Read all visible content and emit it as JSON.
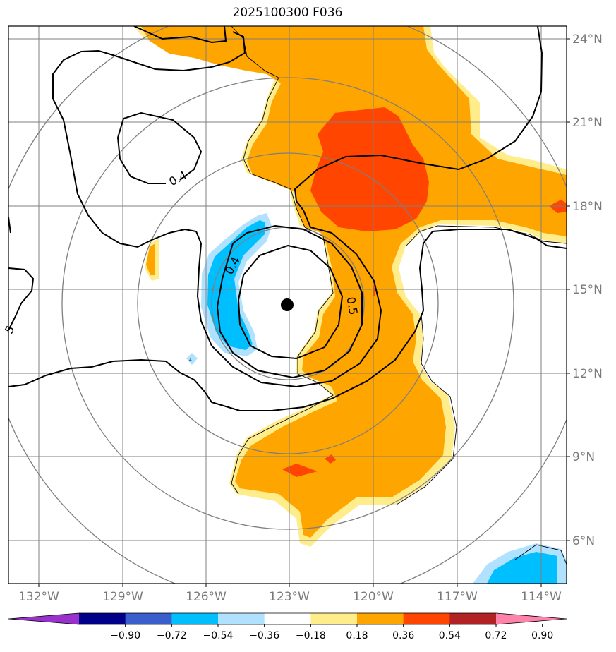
{
  "title": "2025100300 F036",
  "lon_labels": [
    "132°W",
    "129°W",
    "126°W",
    "123°W",
    "120°W",
    "117°W",
    "114°W"
  ],
  "lat_labels": [
    "24°N",
    "21°N",
    "18°N",
    "15°N",
    "12°N",
    "9°N",
    "6°N"
  ],
  "colorbar": {
    "ticks": [
      "−0.90",
      "−0.72",
      "−0.54",
      "−0.36",
      "−0.18",
      "0.18",
      "0.36",
      "0.54",
      "0.72",
      "0.90"
    ],
    "colors": [
      "#9932cc",
      "#00008b",
      "#3a5fcd",
      "#00bfff",
      "#b0e2ff",
      "#ffffff",
      "#ffec8b",
      "#ffa500",
      "#ff4500",
      "#b22222",
      "#ff82ab"
    ]
  },
  "contour_labels": [
    "0.4",
    "0.4",
    "0.5",
    "5",
    "4"
  ],
  "colors": {
    "fill_low": "#ffec8b",
    "fill_mid": "#ffa500",
    "fill_high": "#ff4500",
    "fill_neg_light": "#b0e2ff",
    "fill_neg": "#00bfff",
    "grid": "#7f7f7f",
    "center": "#000000"
  }
}
